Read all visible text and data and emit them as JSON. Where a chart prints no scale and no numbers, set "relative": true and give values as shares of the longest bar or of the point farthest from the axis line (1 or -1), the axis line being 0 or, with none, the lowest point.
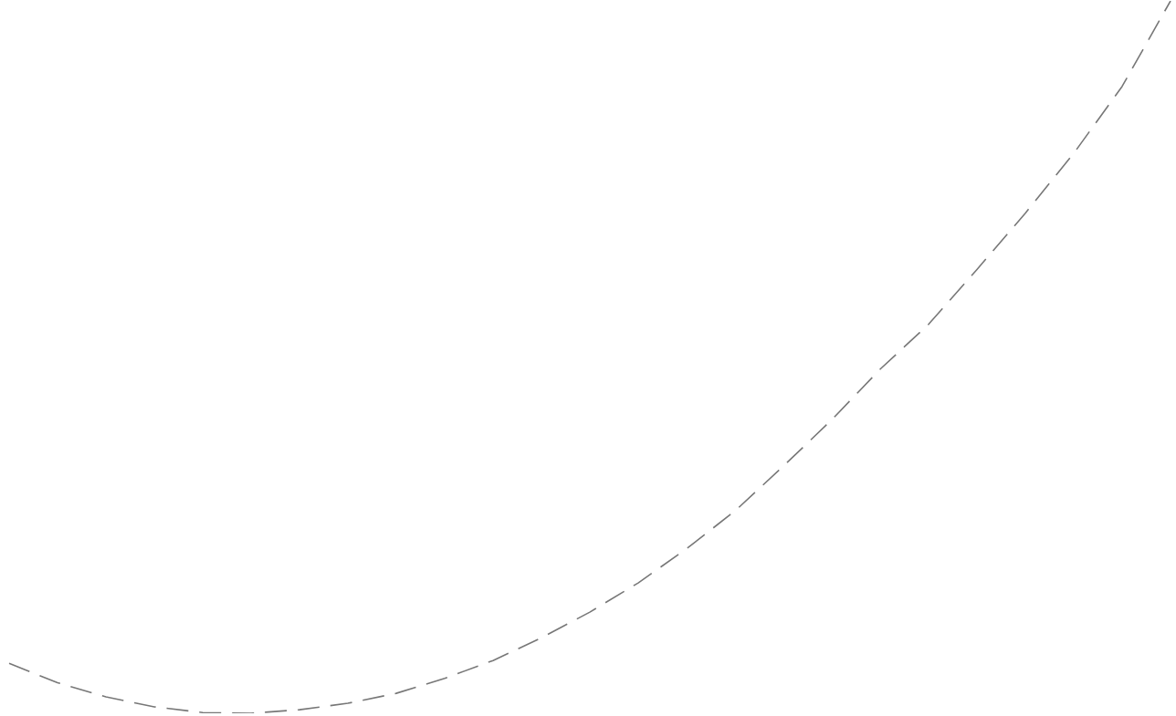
{
  "chart_data": {
    "type": "line",
    "relative": true,
    "categories": [
      null,
      null,
      null,
      null,
      null,
      null,
      null,
      null,
      null,
      null,
      null,
      null,
      null,
      null,
      null,
      null,
      null,
      null,
      null,
      null,
      null,
      null,
      null,
      null,
      null
    ],
    "series": [
      {
        "color": "#777777",
        "values": [
          0.07,
          0.043,
          0.023,
          0.009,
          0.001,
          0,
          0.005,
          0.014,
          0.028,
          0.049,
          0.074,
          0.106,
          0.142,
          0.183,
          0.231,
          0.284,
          0.347,
          0.412,
          0.483,
          0.546,
          0.623,
          0.702,
          0.786,
          0.88,
          1
        ]
      }
    ],
    "line_style": "dashed",
    "marker": "none"
  }
}
